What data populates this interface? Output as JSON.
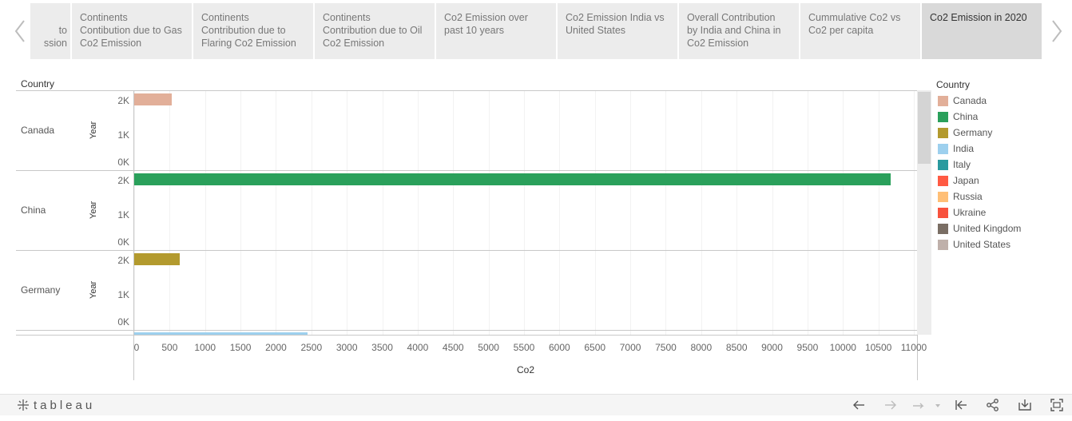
{
  "tabs": [
    {
      "lines": [
        "to",
        "ssion"
      ],
      "active": false
    },
    {
      "lines": [
        "Continents",
        "Contibution due to Gas",
        "Co2 Emission"
      ],
      "active": false
    },
    {
      "lines": [
        "Continents",
        "Contribution due to",
        "Flaring Co2 Emission"
      ],
      "active": false
    },
    {
      "lines": [
        "Continents",
        "Contribution due to Oil",
        "Co2 Emission"
      ],
      "active": false
    },
    {
      "lines": [
        "Co2 Emission over",
        "past 10 years"
      ],
      "active": false
    },
    {
      "lines": [
        "Co2 Emission India vs",
        "United States"
      ],
      "active": false
    },
    {
      "lines": [
        "Overall Contribution",
        "by India and China in",
        "Co2 Emission"
      ],
      "active": false
    },
    {
      "lines": [
        "Cummulative Co2 vs",
        "Co2 per capita"
      ],
      "active": false
    },
    {
      "lines": [
        "Co2 Emission in 2020"
      ],
      "active": true
    }
  ],
  "chart_data": {
    "type": "bar",
    "orientation": "horizontal",
    "row_dimension_label": "Country",
    "panel_axis_label": "Year",
    "panel_ticks": [
      "2K",
      "1K",
      "0K"
    ],
    "xlabel": "Co2",
    "xlim": [
      0,
      11000
    ],
    "xticks": [
      0,
      500,
      1000,
      1500,
      2000,
      2500,
      3000,
      3500,
      4000,
      4500,
      5000,
      5500,
      6000,
      6500,
      7000,
      7500,
      8000,
      8500,
      9000,
      9500,
      10000,
      10500,
      11000
    ],
    "grid": true,
    "legend_title": "Country",
    "legend_position": "right",
    "rows": [
      {
        "country": "Canada",
        "value": 535,
        "year_level": 2020
      },
      {
        "country": "China",
        "value": 10668,
        "year_level": 2020
      },
      {
        "country": "Germany",
        "value": 644,
        "year_level": 2020
      },
      {
        "country": "India",
        "value": 2442,
        "year_level": 2020,
        "partially_visible": true
      }
    ],
    "legend": [
      {
        "name": "Canada",
        "color": "#e2af99"
      },
      {
        "name": "China",
        "color": "#2aa05b"
      },
      {
        "name": "Germany",
        "color": "#b39a2e"
      },
      {
        "name": "India",
        "color": "#9dd0ee"
      },
      {
        "name": "Italy",
        "color": "#2a9a9f"
      },
      {
        "name": "Japan",
        "color": "#ff5a43"
      },
      {
        "name": "Russia",
        "color": "#ffbf76"
      },
      {
        "name": "Ukraine",
        "color": "#f8523d"
      },
      {
        "name": "United Kingdom",
        "color": "#7a6e64"
      },
      {
        "name": "United States",
        "color": "#bfb0aa"
      }
    ]
  },
  "toolbar": {
    "brand": "tableau"
  }
}
